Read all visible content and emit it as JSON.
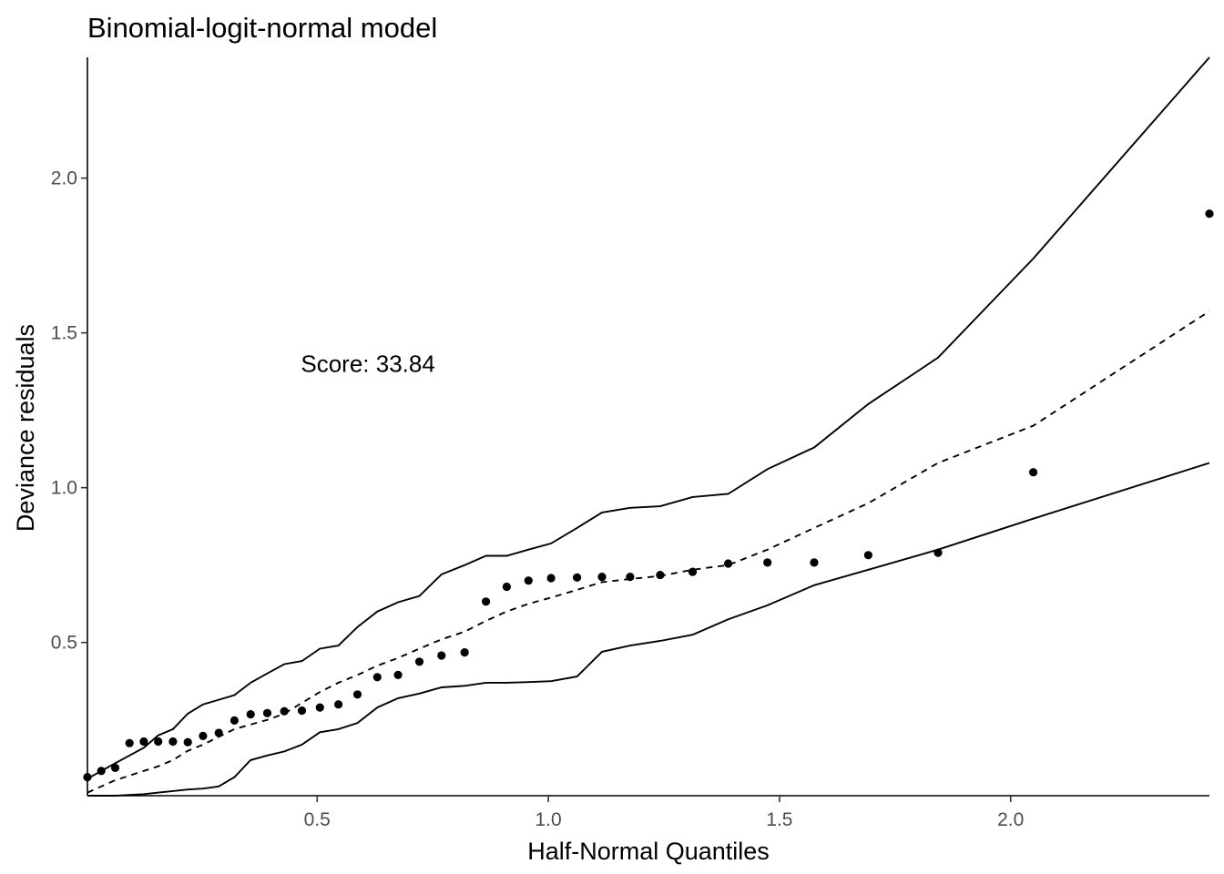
{
  "chart_data": {
    "type": "scatter",
    "title": "Binomial-logit-normal model",
    "xlabel": "Half-Normal Quantiles",
    "ylabel": "Deviance residuals",
    "xlim": [
      0.003,
      2.43
    ],
    "ylim": [
      0.005,
      2.39
    ],
    "x_ticks": [
      0.5,
      1.0,
      1.5,
      2.0
    ],
    "x_tick_labels": [
      "0.5",
      "1.0",
      "1.5",
      "2.0"
    ],
    "y_ticks": [
      0.5,
      1.0,
      1.5,
      2.0
    ],
    "y_tick_labels": [
      "0.5",
      "1.0",
      "1.5",
      "2.0"
    ],
    "grid": false,
    "annotation": {
      "text": "Score: 33.84",
      "x": 0.61,
      "y": 1.4
    },
    "points": {
      "x": [
        0.003,
        0.033,
        0.063,
        0.094,
        0.125,
        0.156,
        0.188,
        0.22,
        0.253,
        0.287,
        0.321,
        0.356,
        0.392,
        0.429,
        0.467,
        0.506,
        0.546,
        0.587,
        0.63,
        0.675,
        0.721,
        0.769,
        0.819,
        0.865,
        0.91,
        0.957,
        1.006,
        1.062,
        1.116,
        1.177,
        1.242,
        1.312,
        1.389,
        1.474,
        1.575,
        1.692,
        1.843,
        2.049,
        2.43
      ],
      "y": [
        0.065,
        0.085,
        0.095,
        0.175,
        0.18,
        0.18,
        0.18,
        0.178,
        0.198,
        0.208,
        0.248,
        0.268,
        0.272,
        0.278,
        0.28,
        0.29,
        0.3,
        0.332,
        0.388,
        0.395,
        0.438,
        0.458,
        0.468,
        0.632,
        0.68,
        0.7,
        0.708,
        0.71,
        0.712,
        0.712,
        0.718,
        0.728,
        0.755,
        0.758,
        0.758,
        0.782,
        0.79,
        1.05,
        1.885
      ]
    },
    "series": [
      {
        "style": "solid",
        "x": [
          0.003,
          0.063,
          0.125,
          0.156,
          0.188,
          0.22,
          0.253,
          0.287,
          0.321,
          0.356,
          0.392,
          0.429,
          0.467,
          0.506,
          0.546,
          0.587,
          0.63,
          0.675,
          0.721,
          0.769,
          0.819,
          0.865,
          0.91,
          0.957,
          1.006,
          1.062,
          1.116,
          1.177,
          1.242,
          1.312,
          1.389,
          1.474,
          1.575,
          1.692,
          1.843,
          2.049,
          2.43
        ],
        "y": [
          0.06,
          0.11,
          0.16,
          0.2,
          0.22,
          0.27,
          0.3,
          0.315,
          0.33,
          0.37,
          0.4,
          0.43,
          0.44,
          0.48,
          0.49,
          0.55,
          0.6,
          0.63,
          0.65,
          0.72,
          0.75,
          0.78,
          0.78,
          0.8,
          0.82,
          0.87,
          0.92,
          0.935,
          0.94,
          0.97,
          0.98,
          1.06,
          1.13,
          1.27,
          1.42,
          1.74,
          2.39
        ]
      },
      {
        "style": "solid",
        "x": [
          0.003,
          0.063,
          0.125,
          0.156,
          0.188,
          0.22,
          0.253,
          0.287,
          0.321,
          0.356,
          0.392,
          0.429,
          0.467,
          0.506,
          0.546,
          0.587,
          0.63,
          0.675,
          0.721,
          0.769,
          0.819,
          0.865,
          0.91,
          0.957,
          1.006,
          1.062,
          1.116,
          1.177,
          1.242,
          1.312,
          1.389,
          1.474,
          1.575,
          1.692,
          1.843,
          2.049,
          2.43
        ],
        "y": [
          0.005,
          0.005,
          0.01,
          0.015,
          0.02,
          0.025,
          0.028,
          0.035,
          0.065,
          0.12,
          0.135,
          0.148,
          0.17,
          0.21,
          0.22,
          0.24,
          0.29,
          0.32,
          0.335,
          0.355,
          0.36,
          0.37,
          0.37,
          0.372,
          0.375,
          0.39,
          0.47,
          0.49,
          0.505,
          0.525,
          0.575,
          0.62,
          0.685,
          0.735,
          0.8,
          0.9,
          1.08
        ]
      },
      {
        "style": "dashed",
        "x": [
          0.003,
          0.063,
          0.125,
          0.156,
          0.188,
          0.22,
          0.253,
          0.287,
          0.321,
          0.356,
          0.392,
          0.429,
          0.467,
          0.506,
          0.546,
          0.587,
          0.63,
          0.675,
          0.721,
          0.769,
          0.819,
          0.865,
          0.91,
          0.957,
          1.006,
          1.062,
          1.116,
          1.177,
          1.242,
          1.312,
          1.389,
          1.474,
          1.575,
          1.692,
          1.843,
          2.049,
          2.43
        ],
        "y": [
          0.015,
          0.055,
          0.085,
          0.1,
          0.12,
          0.15,
          0.17,
          0.195,
          0.22,
          0.235,
          0.25,
          0.27,
          0.305,
          0.34,
          0.37,
          0.395,
          0.425,
          0.45,
          0.48,
          0.51,
          0.535,
          0.57,
          0.6,
          0.625,
          0.645,
          0.67,
          0.695,
          0.705,
          0.715,
          0.735,
          0.75,
          0.8,
          0.87,
          0.95,
          1.08,
          1.2,
          1.57
        ]
      }
    ]
  }
}
